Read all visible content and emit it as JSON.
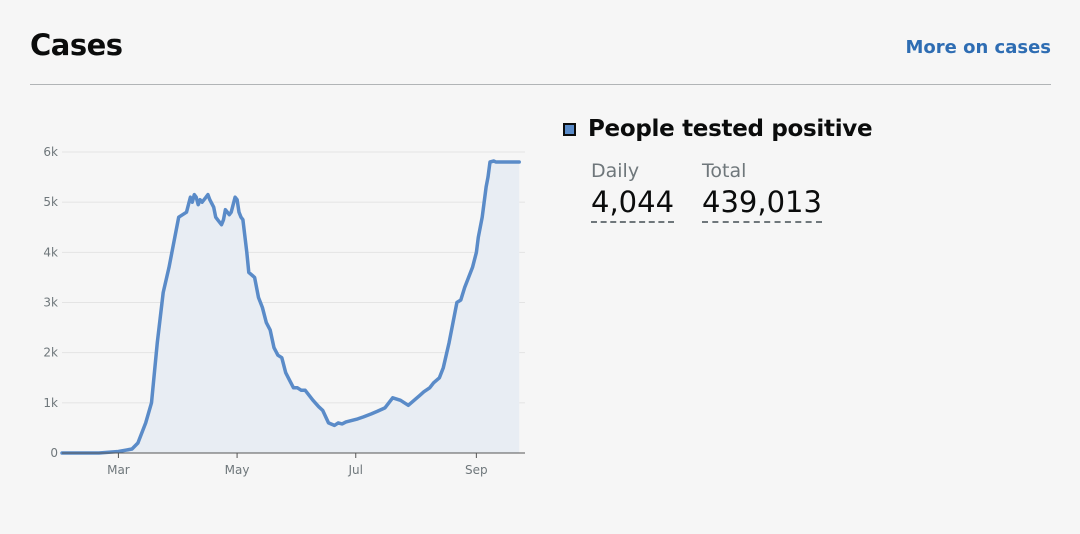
{
  "header": {
    "title": "Cases",
    "more_link": "More on cases"
  },
  "legend": {
    "title": "People tested positive",
    "color": "#5a8bc8"
  },
  "stats": {
    "daily_label": "Daily",
    "daily_value": "4,044",
    "total_label": "Total",
    "total_value": "439,013"
  },
  "chart_data": {
    "type": "area",
    "title": "",
    "xlabel": "",
    "ylabel": "",
    "y_ticks": [
      "0",
      "1k",
      "2k",
      "3k",
      "4k",
      "5k",
      "6k"
    ],
    "ylim": [
      0,
      6000
    ],
    "x_ticks": [
      "Mar",
      "May",
      "Jul",
      "Sep"
    ],
    "x_tick_days": [
      30,
      91,
      152,
      214
    ],
    "xlim": [
      1,
      239
    ],
    "grid": true,
    "line_color": "#5a8bc8",
    "fill_color": "#e8edf3",
    "series": [
      {
        "x": [
          1,
          20,
          30,
          37,
          40,
          44,
          47,
          50,
          53,
          56,
          59,
          61,
          63,
          65,
          67,
          68,
          69,
          70,
          71,
          72,
          73,
          75,
          76,
          77,
          79,
          80,
          81,
          83,
          84,
          85,
          86,
          87,
          88,
          90,
          91,
          92,
          93,
          94,
          96,
          97,
          100,
          102,
          104,
          106,
          108,
          110,
          112,
          114,
          116,
          118,
          120,
          122,
          124,
          126,
          128,
          130,
          133,
          135,
          138,
          141,
          143,
          145,
          147,
          149,
          151,
          153,
          156,
          160,
          163,
          167,
          171,
          175,
          179,
          182,
          185,
          187,
          190,
          192,
          195,
          197,
          200,
          202,
          204,
          206,
          208,
          210,
          212,
          214,
          215,
          217,
          219,
          220,
          221,
          223,
          224,
          226,
          227,
          228,
          230,
          231,
          233,
          234,
          235,
          236
        ],
        "values": [
          0,
          0,
          30,
          80,
          200,
          600,
          1000,
          2200,
          3200,
          3700,
          4300,
          4700,
          4750,
          4800,
          5100,
          5000,
          5150,
          5100,
          4950,
          5050,
          5000,
          5100,
          5150,
          5050,
          4900,
          4700,
          4650,
          4550,
          4650,
          4850,
          4800,
          4750,
          4800,
          5100,
          5050,
          4800,
          4700,
          4650,
          4000,
          3600,
          3500,
          3100,
          2900,
          2600,
          2450,
          2100,
          1950,
          1900,
          1600,
          1450,
          1300,
          1300,
          1250,
          1250,
          1150,
          1050,
          920,
          850,
          600,
          550,
          600,
          580,
          620,
          640,
          660,
          680,
          720,
          780,
          830,
          900,
          1100,
          1050,
          950,
          1050,
          1150,
          1220,
          1300,
          1400,
          1500,
          1700,
          2200,
          2600,
          3000,
          3050,
          3300,
          3500,
          3700,
          4000,
          4300,
          4700,
          5300,
          5500,
          5800,
          5820,
          5800,
          5800,
          5800,
          5800,
          5800,
          5800,
          5800,
          5800,
          5800,
          5800
        ]
      }
    ]
  }
}
